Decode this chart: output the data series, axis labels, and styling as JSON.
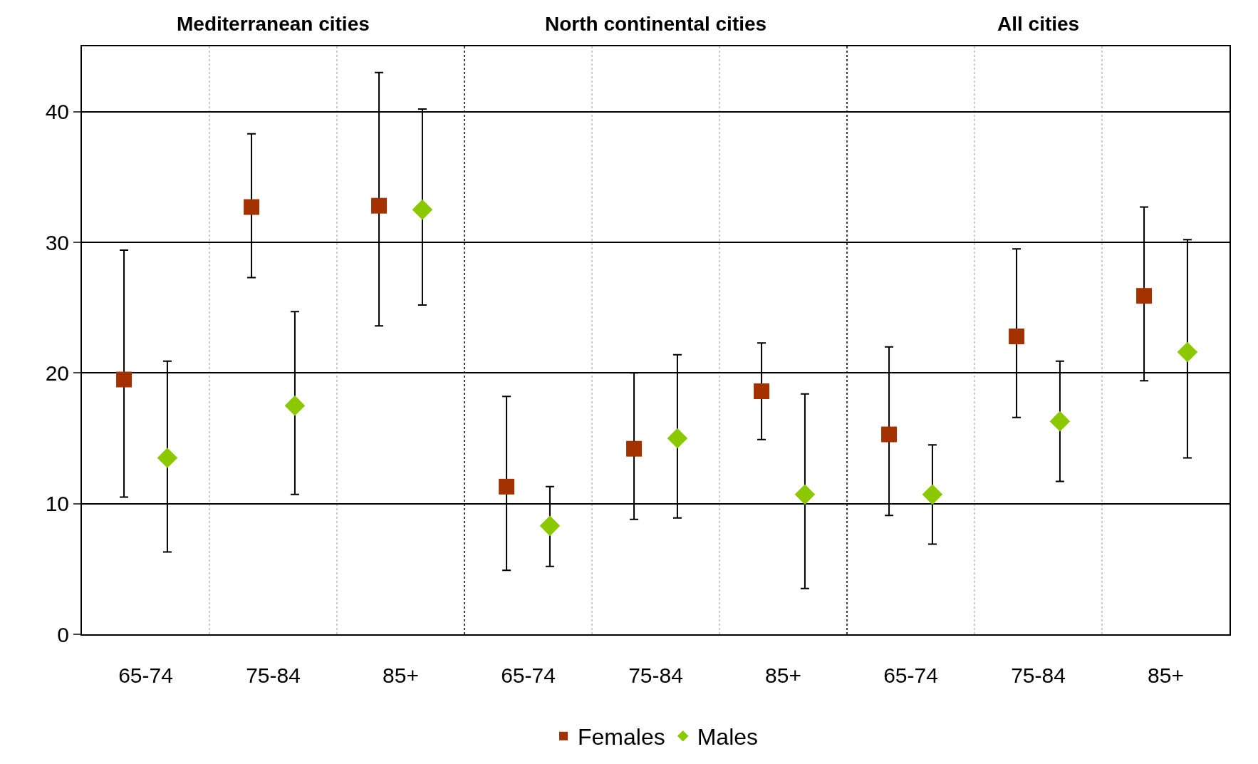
{
  "chart_data": {
    "type": "scatter",
    "categories": [
      "65-74",
      "75-84",
      "85+",
      "65-74",
      "75-84",
      "85+",
      "65-74",
      "75-84",
      "85+"
    ],
    "annotations": [
      "Mediterranean cities",
      "North continental cities",
      "All cities"
    ],
    "series": [
      {
        "name": "Females",
        "color": "#a33200",
        "marker": "square",
        "values": [
          19.5,
          32.7,
          32.8,
          11.3,
          14.2,
          18.6,
          15.3,
          22.8,
          25.9
        ],
        "errors": [
          [
            10.5,
            29.4
          ],
          [
            27.3,
            38.3
          ],
          [
            23.6,
            43.0
          ],
          [
            4.9,
            18.2
          ],
          [
            8.8,
            20.0
          ],
          [
            14.9,
            22.3
          ],
          [
            9.1,
            22.0
          ],
          [
            16.6,
            29.5
          ],
          [
            19.4,
            32.7
          ]
        ]
      },
      {
        "name": "Males",
        "color": "#8cc800",
        "marker": "diamond",
        "values": [
          13.5,
          17.5,
          32.5,
          8.3,
          15.0,
          10.7,
          10.7,
          16.3,
          21.6
        ],
        "errors": [
          [
            6.3,
            20.9
          ],
          [
            10.7,
            24.7
          ],
          [
            25.2,
            40.2
          ],
          [
            5.2,
            11.3
          ],
          [
            8.9,
            21.4
          ],
          [
            3.5,
            18.4
          ],
          [
            6.9,
            14.5
          ],
          [
            11.7,
            20.9
          ],
          [
            13.5,
            30.2
          ]
        ]
      }
    ],
    "ylim": [
      0,
      45
    ],
    "yticks": [
      0,
      10,
      20,
      30,
      40
    ],
    "grid": "y",
    "legend": "bottom"
  }
}
